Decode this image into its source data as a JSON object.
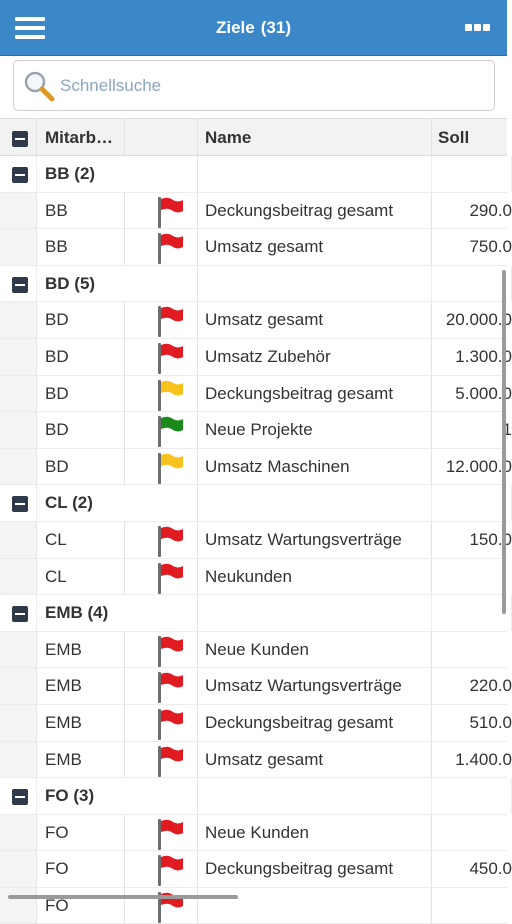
{
  "header": {
    "title": "Ziele",
    "count": "(31)"
  },
  "search": {
    "placeholder": "Schnellsuche",
    "value": ""
  },
  "columns": {
    "mitarbeiter": "Mitarb…",
    "flag": "",
    "name": "Name",
    "soll": "Soll"
  },
  "colors": {
    "red": "#e11b22",
    "yellow": "#f6c21b",
    "green": "#1a8a1a",
    "topbar": "#3b87c7"
  },
  "rows": [
    {
      "type": "group",
      "label": "BB (2)"
    },
    {
      "type": "data",
      "mitarbeiter": "BB",
      "flag": "red",
      "name": "Deckungsbeitrag gesamt",
      "soll": "290.0"
    },
    {
      "type": "data",
      "mitarbeiter": "BB",
      "flag": "red",
      "name": "Umsatz gesamt",
      "soll": "750.0"
    },
    {
      "type": "group",
      "label": "BD (5)"
    },
    {
      "type": "data",
      "mitarbeiter": "BD",
      "flag": "red",
      "name": "Umsatz gesamt",
      "soll": "20.000.0"
    },
    {
      "type": "data",
      "mitarbeiter": "BD",
      "flag": "red",
      "name": "Umsatz Zubehör",
      "soll": "1.300.0"
    },
    {
      "type": "data",
      "mitarbeiter": "BD",
      "flag": "yellow",
      "name": "Deckungsbeitrag gesamt",
      "soll": "5.000.0"
    },
    {
      "type": "data",
      "mitarbeiter": "BD",
      "flag": "green",
      "name": "Neue Projekte",
      "soll": "1"
    },
    {
      "type": "data",
      "mitarbeiter": "BD",
      "flag": "yellow",
      "name": "Umsatz Maschinen",
      "soll": "12.000.0"
    },
    {
      "type": "group",
      "label": "CL (2)"
    },
    {
      "type": "data",
      "mitarbeiter": "CL",
      "flag": "red",
      "name": "Umsatz Wartungsverträge",
      "soll": "150.0"
    },
    {
      "type": "data",
      "mitarbeiter": "CL",
      "flag": "red",
      "name": "Neukunden",
      "soll": ""
    },
    {
      "type": "group",
      "label": "EMB (4)"
    },
    {
      "type": "data",
      "mitarbeiter": "EMB",
      "flag": "red",
      "name": "Neue Kunden",
      "soll": ""
    },
    {
      "type": "data",
      "mitarbeiter": "EMB",
      "flag": "red",
      "name": "Umsatz Wartungsverträge",
      "soll": "220.0"
    },
    {
      "type": "data",
      "mitarbeiter": "EMB",
      "flag": "red",
      "name": "Deckungsbeitrag gesamt",
      "soll": "510.0"
    },
    {
      "type": "data",
      "mitarbeiter": "EMB",
      "flag": "red",
      "name": "Umsatz gesamt",
      "soll": "1.400.0"
    },
    {
      "type": "group",
      "label": "FO (3)"
    },
    {
      "type": "data",
      "mitarbeiter": "FO",
      "flag": "red",
      "name": "Neue Kunden",
      "soll": ""
    },
    {
      "type": "data",
      "mitarbeiter": "FO",
      "flag": "red",
      "name": "Deckungsbeitrag gesamt",
      "soll": "450.0"
    },
    {
      "type": "data",
      "mitarbeiter": "FO",
      "flag": "red",
      "name": "",
      "soll": ""
    }
  ]
}
